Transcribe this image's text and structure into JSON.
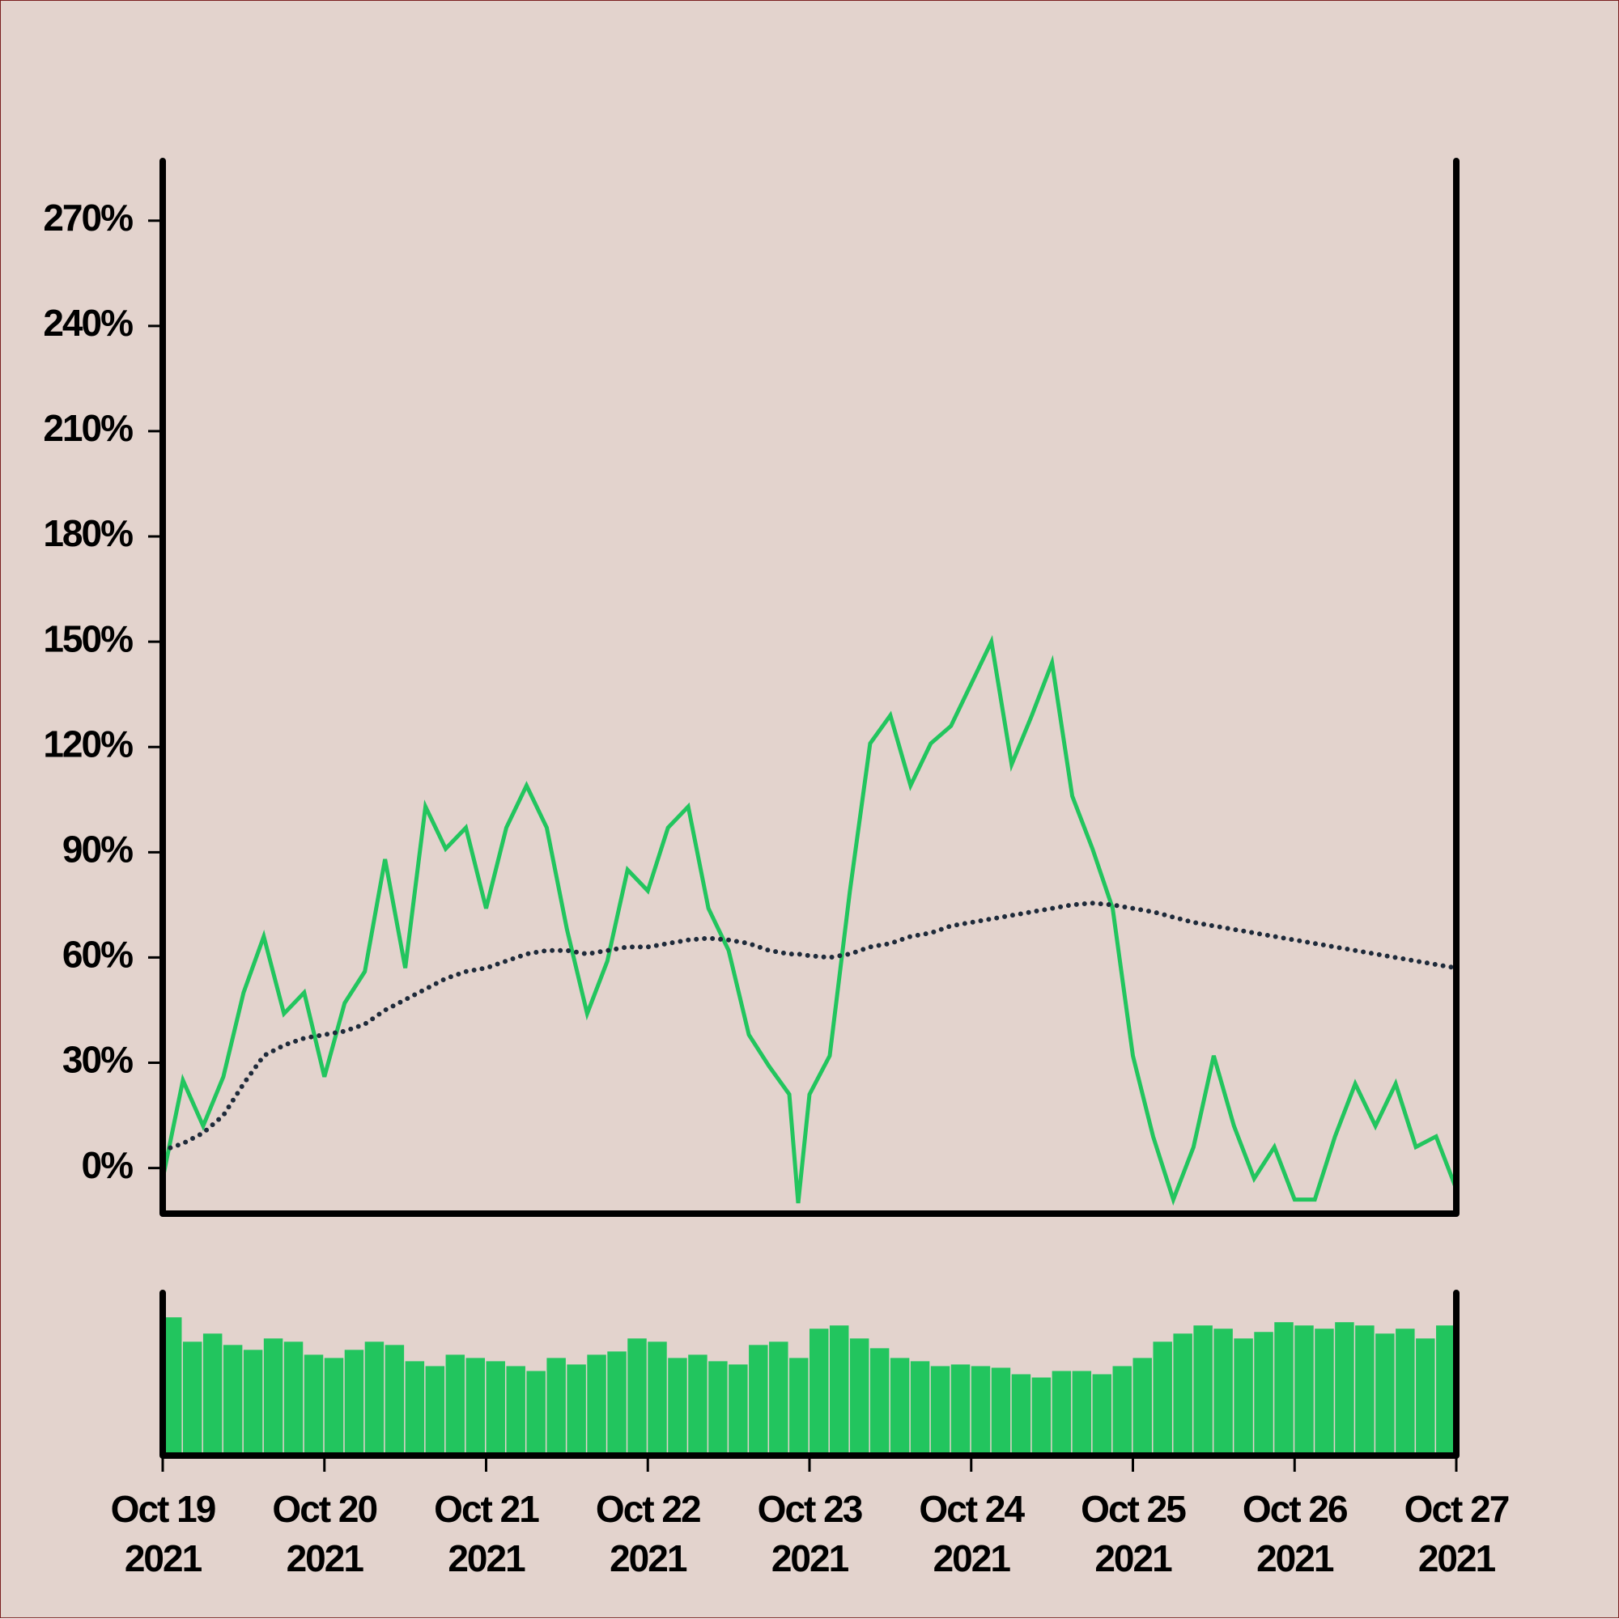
{
  "chart_data": [
    {
      "type": "line",
      "x": [
        0,
        0.125,
        0.25,
        0.375,
        0.5,
        0.625,
        0.75,
        0.875,
        1,
        1.125,
        1.25,
        1.375,
        1.5,
        1.625,
        1.75,
        1.875,
        2,
        2.125,
        2.25,
        2.375,
        2.5,
        2.625,
        2.75,
        2.875,
        3,
        3.125,
        3.25,
        3.375,
        3.5,
        3.625,
        3.75,
        3.875,
        3.93,
        4,
        4.125,
        4.25,
        4.375,
        4.5,
        4.625,
        4.75,
        4.875,
        5,
        5.125,
        5.25,
        5.375,
        5.5,
        5.625,
        5.75,
        5.875,
        6,
        6.125,
        6.25,
        6.375,
        6.5,
        6.625,
        6.75,
        6.875,
        7,
        7.125,
        7.25,
        7.375,
        7.5,
        7.625,
        7.75,
        7.875,
        8
      ],
      "series": [
        {
          "color": "#22c55e",
          "style": "solid",
          "values": [
            -3,
            25,
            12,
            26,
            50,
            66,
            44,
            50,
            26,
            47,
            56,
            88,
            57,
            103,
            91,
            97,
            74,
            97,
            109,
            97,
            68,
            44,
            59,
            85,
            79,
            97,
            103,
            74,
            62,
            38,
            29,
            21,
            -10,
            21,
            32,
            79,
            121,
            129,
            109,
            121,
            126,
            138,
            150,
            115,
            129,
            144,
            106,
            91,
            74,
            32,
            9,
            -9,
            6,
            32,
            12,
            -3,
            6,
            -9,
            -9,
            9,
            24,
            12,
            24,
            6,
            9,
            -6
          ]
        },
        {
          "color": "#1e2a3a",
          "style": "dotted",
          "values": [
            5,
            7,
            10,
            15,
            24,
            32,
            35,
            37,
            38,
            39,
            41,
            45,
            48,
            51,
            54,
            56,
            57,
            59,
            61,
            62,
            62,
            61,
            62,
            63,
            63,
            64,
            65,
            65.5,
            65,
            64,
            62,
            61,
            61,
            60.5,
            60,
            61,
            63,
            64,
            66,
            67,
            69,
            70,
            71,
            72,
            73,
            74,
            75,
            75.5,
            75,
            74,
            73,
            71.5,
            70,
            69,
            68,
            67,
            66,
            65,
            64,
            63,
            62,
            61,
            60,
            59,
            58,
            57
          ]
        }
      ],
      "xlim": [
        0,
        8
      ],
      "ylim": [
        -13,
        287
      ],
      "yticks": [
        {
          "value": 0,
          "label": "0%"
        },
        {
          "value": 30,
          "label": "30%"
        },
        {
          "value": 60,
          "label": "60%"
        },
        {
          "value": 90,
          "label": "90%"
        },
        {
          "value": 120,
          "label": "120%"
        },
        {
          "value": 150,
          "label": "150%"
        },
        {
          "value": 180,
          "label": "180%"
        },
        {
          "value": 210,
          "label": "210%"
        },
        {
          "value": 240,
          "label": "240%"
        },
        {
          "value": 270,
          "label": "270%"
        }
      ]
    },
    {
      "type": "bar",
      "x": [
        0,
        0.125,
        0.25,
        0.375,
        0.5,
        0.625,
        0.75,
        0.875,
        1,
        1.125,
        1.25,
        1.375,
        1.5,
        1.625,
        1.75,
        1.875,
        2,
        2.125,
        2.25,
        2.375,
        2.5,
        2.625,
        2.75,
        2.875,
        3,
        3.125,
        3.25,
        3.375,
        3.5,
        3.625,
        3.75,
        3.875,
        4,
        4.125,
        4.25,
        4.375,
        4.5,
        4.625,
        4.75,
        4.875,
        5,
        5.125,
        5.25,
        5.375,
        5.5,
        5.625,
        5.75,
        5.875,
        6,
        6.125,
        6.25,
        6.375,
        6.5,
        6.625,
        6.75,
        6.875,
        7,
        7.125,
        7.25,
        7.375,
        7.5,
        7.625,
        7.75,
        7.875
      ],
      "values": [
        85,
        70,
        75,
        68,
        65,
        72,
        70,
        62,
        60,
        65,
        70,
        68,
        58,
        55,
        62,
        60,
        58,
        55,
        52,
        60,
        56,
        62,
        64,
        72,
        70,
        60,
        62,
        58,
        56,
        68,
        70,
        60,
        78,
        80,
        72,
        66,
        60,
        58,
        55,
        56,
        55,
        54,
        50,
        48,
        52,
        52,
        50,
        55,
        60,
        70,
        75,
        80,
        78,
        72,
        76,
        82,
        80,
        78,
        82,
        80,
        75,
        78,
        72,
        80
      ],
      "color": "#22c55e",
      "xlim": [
        0,
        8
      ],
      "ylim": [
        0,
        100
      ],
      "xticks": [
        {
          "value": 0,
          "label": "Oct 19\n2021"
        },
        {
          "value": 1,
          "label": "Oct 20\n2021"
        },
        {
          "value": 2,
          "label": "Oct 21\n2021"
        },
        {
          "value": 3,
          "label": "Oct 22\n2021"
        },
        {
          "value": 4,
          "label": "Oct 23\n2021"
        },
        {
          "value": 5,
          "label": "Oct 24\n2021"
        },
        {
          "value": 6,
          "label": "Oct 25\n2021"
        },
        {
          "value": 7,
          "label": "Oct 26\n2021"
        },
        {
          "value": 8,
          "label": "Oct 27\n2021"
        }
      ]
    }
  ]
}
